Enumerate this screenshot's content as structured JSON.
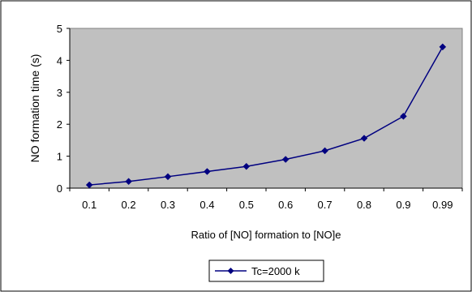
{
  "chart_data": {
    "type": "line",
    "title": "",
    "xlabel": "Ratio of [NO] formation to [NO]e",
    "ylabel": "NO formation time (s)",
    "categories": [
      "0.1",
      "0.2",
      "0.3",
      "0.4",
      "0.5",
      "0.6",
      "0.7",
      "0.8",
      "0.9",
      "0.99"
    ],
    "series": [
      {
        "name": "Tc=2000 k",
        "values": [
          0.1,
          0.21,
          0.36,
          0.52,
          0.68,
          0.9,
          1.17,
          1.56,
          2.25,
          4.42
        ]
      }
    ],
    "ylim": [
      0,
      5
    ],
    "yticks": [
      "0",
      "1",
      "2",
      "3",
      "4",
      "5"
    ],
    "grid": false,
    "legend_position": "bottom",
    "colors": {
      "plot_background": "#c0c0c0",
      "series": "#000080",
      "frame": "#000000"
    }
  }
}
